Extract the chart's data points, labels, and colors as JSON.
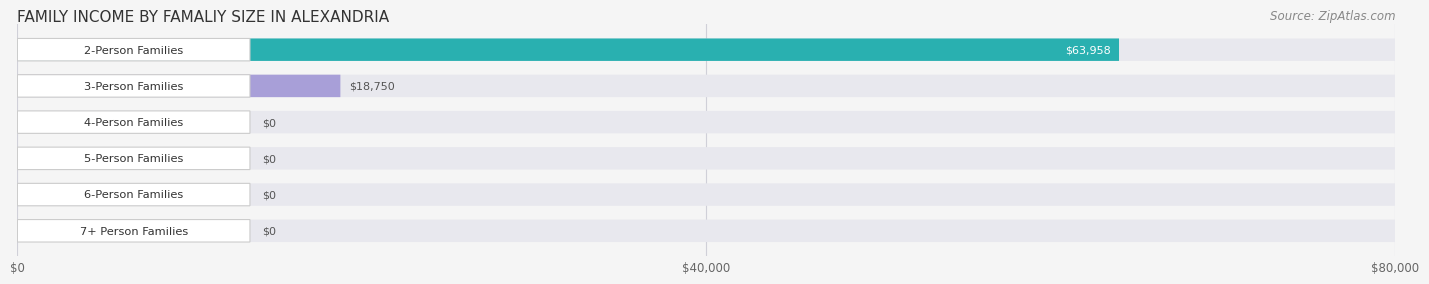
{
  "title": "FAMILY INCOME BY FAMALIY SIZE IN ALEXANDRIA",
  "source": "Source: ZipAtlas.com",
  "categories": [
    "2-Person Families",
    "3-Person Families",
    "4-Person Families",
    "5-Person Families",
    "6-Person Families",
    "7+ Person Families"
  ],
  "values": [
    63958,
    18750,
    0,
    0,
    0,
    0
  ],
  "bar_colors": [
    "#29b0b0",
    "#a89fd8",
    "#f48faa",
    "#f7c97a",
    "#f4a0a8",
    "#90b8e8"
  ],
  "label_colors": [
    "#29b0b0",
    "#a89fd8",
    "#f48faa",
    "#f7c97a",
    "#f4a0a8",
    "#90b8e8"
  ],
  "value_labels": [
    "$63,958",
    "$18,750",
    "$0",
    "$0",
    "$0",
    "$0"
  ],
  "value_label_colors": [
    "#ffffff",
    "#555555",
    "#555555",
    "#555555",
    "#555555",
    "#555555"
  ],
  "xlim": [
    0,
    80000
  ],
  "xticks": [
    0,
    40000,
    80000
  ],
  "xticklabels": [
    "$0",
    "$40,000",
    "$80,000"
  ],
  "background_color": "#f5f5f5",
  "bar_background_color": "#e8e8ee",
  "title_fontsize": 11,
  "source_fontsize": 8.5
}
